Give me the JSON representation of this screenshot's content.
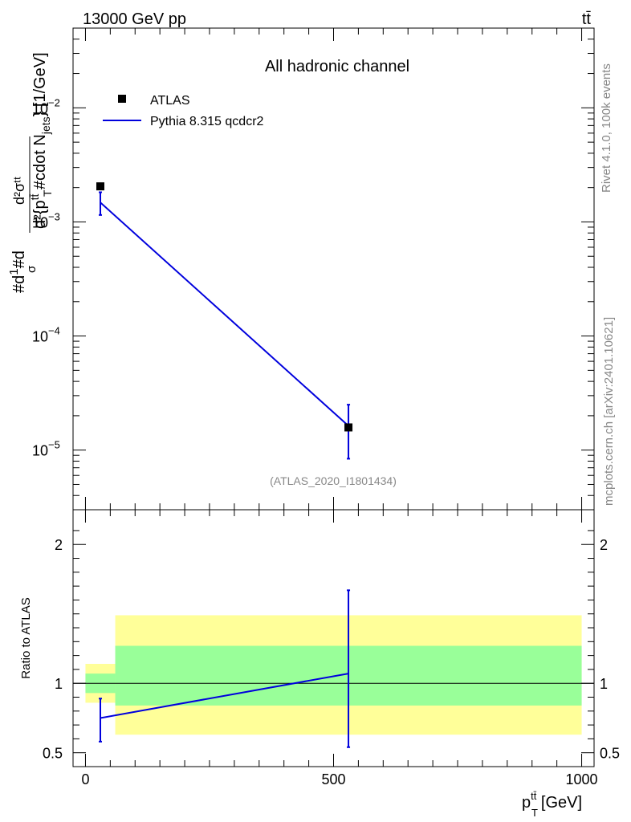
{
  "header": {
    "energy_label": "13000 GeV pp",
    "process_label": "tt̄"
  },
  "side_labels": {
    "rivet": "Rivet 4.1.0,  100k events",
    "source": "mcplots.cern.ch [arXiv:2401.10621]"
  },
  "chart_data": [
    {
      "type": "scatter",
      "title": "All hadronic channel",
      "analysis_tag": "(ATLAS_2020_I1801434)",
      "ylabel": "#d¹⁄σ#d  d²σᵗᵗ / d²{pᵀᵗᵗ #cdot Nⱼₑₜₛ} [1/GeV]",
      "ylabel_parts": {
        "prefix": "#d",
        "frac_top": "1",
        "frac_bottom": "σ",
        "mid": "#d",
        "big_frac_top": "d²σᵗᵗ",
        "big_frac_bottom": "d²{p",
        "pt_sup": "tt̄",
        "pt_sub": "T",
        "cdot": " #cdot N",
        "jets_sub": "jets",
        "suffix": "} [1/GeV]"
      },
      "yscale": "log",
      "ylim": [
        3e-06,
        0.05
      ],
      "xlim": [
        -25,
        1025
      ],
      "y_ticks": [
        {
          "value": 1e-05,
          "base": "10",
          "exp": "−5"
        },
        {
          "value": 0.0001,
          "base": "10",
          "exp": "−4"
        },
        {
          "value": 0.001,
          "base": "10",
          "exp": "−3"
        },
        {
          "value": 0.01,
          "base": "10",
          "exp": "−2"
        }
      ],
      "legend": [
        {
          "name": "ATLAS",
          "marker": "square",
          "color": "#000000"
        },
        {
          "name": "Pythia 8.315 qcdcr2",
          "marker": "line",
          "color": "#0000dd"
        }
      ],
      "series": [
        {
          "name": "ATLAS",
          "x": [
            30,
            530
          ],
          "y": [
            0.00205,
            1.58e-05
          ]
        },
        {
          "name": "Pythia 8.315 qcdcr2",
          "x": [
            30,
            530
          ],
          "y": [
            0.00148,
            1.63e-05
          ],
          "yerr_low": [
            0.00115,
            8.4e-06
          ],
          "yerr_high": [
            0.00182,
            2.5e-05
          ]
        }
      ]
    },
    {
      "type": "line",
      "ylabel": "Ratio to ATLAS",
      "xlabel_main": "p",
      "xlabel_sup": "tt̄",
      "xlabel_sub": "T",
      "xlabel_unit": " [GeV]",
      "ylim": [
        0.4,
        2.25
      ],
      "xlim": [
        -25,
        1025
      ],
      "y_ticks": [
        {
          "value": 0.5,
          "label": "0.5"
        },
        {
          "value": 1,
          "label": "1"
        },
        {
          "value": 2,
          "label": "2"
        }
      ],
      "x_ticks": [
        {
          "value": 0,
          "label": "0"
        },
        {
          "value": 500,
          "label": "500"
        },
        {
          "value": 1000,
          "label": "1000"
        }
      ],
      "bands": [
        {
          "x0": 0,
          "x1": 60,
          "green": [
            0.93,
            1.07
          ],
          "yellow": [
            0.86,
            1.14
          ]
        },
        {
          "x0": 60,
          "x1": 1000,
          "green": [
            0.84,
            1.27
          ],
          "yellow": [
            0.63,
            1.49
          ]
        }
      ],
      "series": [
        {
          "name": "Pythia 8.315 qcdcr2",
          "x": [
            30,
            530
          ],
          "y": [
            0.75,
            1.07
          ],
          "yerr_low": [
            0.58,
            0.54
          ],
          "yerr_high": [
            0.89,
            1.67
          ]
        }
      ]
    }
  ]
}
